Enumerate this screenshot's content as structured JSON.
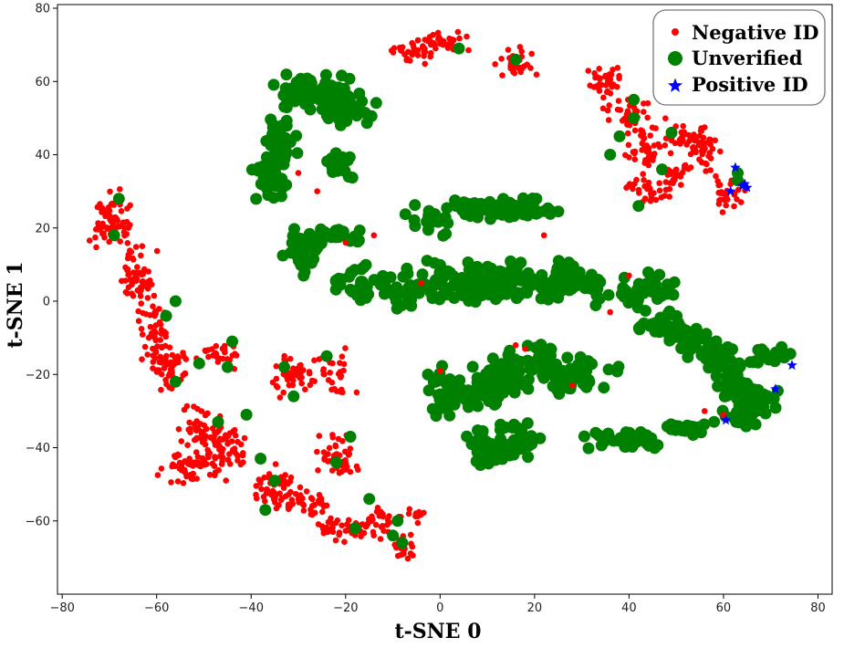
{
  "chart_data": {
    "type": "scatter",
    "title": "",
    "xlabel": "t-SNE 0",
    "ylabel": "t-SNE 1",
    "xlim": [
      -81,
      83
    ],
    "ylim": [
      -80,
      81
    ],
    "xticks": [
      -80,
      -60,
      -40,
      -20,
      0,
      20,
      40,
      60,
      80
    ],
    "yticks": [
      -60,
      -40,
      -20,
      0,
      20,
      40,
      60,
      80
    ],
    "grid": false,
    "legend_position": "top-right",
    "series": [
      {
        "name": "Negative ID",
        "color": "#ff0000",
        "marker": "circle",
        "clusters": [
          {
            "cx": -70,
            "cy": 22,
            "rx": 3.5,
            "ry": 6,
            "n": 70
          },
          {
            "cx": -64,
            "cy": 5,
            "rx": 3,
            "ry": 8,
            "n": 60
          },
          {
            "cx": -60,
            "cy": -8,
            "rx": 3,
            "ry": 6,
            "n": 40
          },
          {
            "cx": -57,
            "cy": -18,
            "rx": 4,
            "ry": 5,
            "n": 50
          },
          {
            "cx": -46,
            "cy": -15,
            "rx": 3,
            "ry": 3,
            "n": 25
          },
          {
            "cx": -50,
            "cy": -35,
            "rx": 4,
            "ry": 6,
            "n": 45
          },
          {
            "cx": -53,
            "cy": -45,
            "rx": 6,
            "ry": 4,
            "n": 60
          },
          {
            "cx": -45,
            "cy": -40,
            "rx": 4,
            "ry": 6,
            "n": 50
          },
          {
            "cx": -35,
            "cy": -50,
            "rx": 4,
            "ry": 6,
            "n": 50
          },
          {
            "cx": -28,
            "cy": -55,
            "rx": 4,
            "ry": 3,
            "n": 40
          },
          {
            "cx": -30,
            "cy": -20,
            "rx": 5,
            "ry": 5,
            "n": 50
          },
          {
            "cx": -22,
            "cy": -20,
            "rx": 3,
            "ry": 5,
            "n": 25
          },
          {
            "cx": -22,
            "cy": -42,
            "rx": 4,
            "ry": 6,
            "n": 45
          },
          {
            "cx": -20,
            "cy": -62,
            "rx": 5,
            "ry": 3,
            "n": 40
          },
          {
            "cx": -13,
            "cy": -60,
            "rx": 3,
            "ry": 4,
            "n": 25
          },
          {
            "cx": -8,
            "cy": -67,
            "rx": 2,
            "ry": 4,
            "n": 25
          },
          {
            "cx": -6,
            "cy": -58,
            "rx": 3,
            "ry": 2,
            "n": 12
          },
          {
            "cx": -6,
            "cy": 68,
            "rx": 4,
            "ry": 2.5,
            "n": 30
          },
          {
            "cx": 0,
            "cy": 71,
            "rx": 5,
            "ry": 2.5,
            "n": 35
          },
          {
            "cx": 16,
            "cy": 65,
            "rx": 3,
            "ry": 3,
            "n": 30
          },
          {
            "cx": 35,
            "cy": 60,
            "rx": 3,
            "ry": 4,
            "n": 35
          },
          {
            "cx": 39,
            "cy": 52,
            "rx": 4,
            "ry": 3,
            "n": 30
          },
          {
            "cx": 43,
            "cy": 42,
            "rx": 4,
            "ry": 6,
            "n": 50
          },
          {
            "cx": 52,
            "cy": 45,
            "rx": 5,
            "ry": 3,
            "n": 40
          },
          {
            "cx": 56,
            "cy": 40,
            "rx": 3,
            "ry": 4,
            "n": 30
          },
          {
            "cx": 44,
            "cy": 30,
            "rx": 4,
            "ry": 3,
            "n": 30
          },
          {
            "cx": 50,
            "cy": 35,
            "rx": 3,
            "ry": 3,
            "n": 25
          },
          {
            "cx": 61,
            "cy": 30,
            "rx": 2.5,
            "ry": 5,
            "n": 30
          }
        ]
      },
      {
        "name": "Unverified",
        "color": "#008000",
        "marker": "circle",
        "clusters": [
          {
            "cx": -30,
            "cy": 57,
            "rx": 5,
            "ry": 4,
            "n": 45
          },
          {
            "cx": -23,
            "cy": 57,
            "rx": 4,
            "ry": 4,
            "n": 35
          },
          {
            "cx": -21,
            "cy": 52,
            "rx": 6,
            "ry": 3,
            "n": 40
          },
          {
            "cx": -34,
            "cy": 45,
            "rx": 3,
            "ry": 5,
            "n": 30
          },
          {
            "cx": -36,
            "cy": 34,
            "rx": 3,
            "ry": 6,
            "n": 40
          },
          {
            "cx": -21,
            "cy": 38,
            "rx": 3,
            "ry": 3,
            "n": 25
          },
          {
            "cx": -29,
            "cy": 14,
            "rx": 3,
            "ry": 6,
            "n": 40
          },
          {
            "cx": -22,
            "cy": 18,
            "rx": 5,
            "ry": 2,
            "n": 30
          },
          {
            "cx": -18,
            "cy": 5,
            "rx": 4,
            "ry": 4,
            "n": 30
          },
          {
            "cx": -8,
            "cy": 3,
            "rx": 4,
            "ry": 5,
            "n": 35
          },
          {
            "cx": -2,
            "cy": 22,
            "rx": 4,
            "ry": 3,
            "n": 25
          },
          {
            "cx": 8,
            "cy": 25,
            "rx": 6,
            "ry": 2.5,
            "n": 40
          },
          {
            "cx": 18,
            "cy": 25,
            "rx": 6,
            "ry": 2.5,
            "n": 35
          },
          {
            "cx": 0,
            "cy": 5,
            "rx": 4,
            "ry": 5,
            "n": 35
          },
          {
            "cx": 8,
            "cy": 5,
            "rx": 4,
            "ry": 5,
            "n": 35
          },
          {
            "cx": 15,
            "cy": 5,
            "rx": 4,
            "ry": 5,
            "n": 35
          },
          {
            "cx": 22,
            "cy": 5,
            "rx": 4,
            "ry": 5,
            "n": 35
          },
          {
            "cx": 28,
            "cy": 5,
            "rx": 3,
            "ry": 4,
            "n": 25
          },
          {
            "cx": 33,
            "cy": 4,
            "rx": 2,
            "ry": 4,
            "n": 15
          },
          {
            "cx": 44,
            "cy": 3,
            "rx": 5,
            "ry": 4,
            "n": 35
          },
          {
            "cx": 47,
            "cy": -6,
            "rx": 4,
            "ry": 3,
            "n": 30
          },
          {
            "cx": 53,
            "cy": -10,
            "rx": 4,
            "ry": 3,
            "n": 30
          },
          {
            "cx": 58,
            "cy": -14,
            "rx": 4,
            "ry": 3,
            "n": 30
          },
          {
            "cx": 62,
            "cy": -22,
            "rx": 3,
            "ry": 6,
            "n": 35
          },
          {
            "cx": 66,
            "cy": -27,
            "rx": 4,
            "ry": 4,
            "n": 60
          },
          {
            "cx": 64,
            "cy": -32,
            "rx": 3,
            "ry": 2,
            "n": 20
          },
          {
            "cx": 70,
            "cy": -15,
            "rx": 4,
            "ry": 2,
            "n": 25
          },
          {
            "cx": 2,
            "cy": -25,
            "rx": 4,
            "ry": 6,
            "n": 45
          },
          {
            "cx": 10,
            "cy": -25,
            "rx": 3,
            "ry": 3,
            "n": 25
          },
          {
            "cx": 14,
            "cy": -20,
            "rx": 6,
            "ry": 5,
            "n": 55
          },
          {
            "cx": 22,
            "cy": -18,
            "rx": 5,
            "ry": 5,
            "n": 45
          },
          {
            "cx": 30,
            "cy": -20,
            "rx": 6,
            "ry": 4,
            "n": 40
          },
          {
            "cx": 10,
            "cy": -38,
            "rx": 4,
            "ry": 6,
            "n": 45
          },
          {
            "cx": 17,
            "cy": -38,
            "rx": 3,
            "ry": 5,
            "n": 30
          },
          {
            "cx": 40,
            "cy": -38,
            "rx": 7,
            "ry": 2.5,
            "n": 40
          },
          {
            "cx": 52,
            "cy": -35,
            "rx": 5,
            "ry": 2,
            "n": 25
          }
        ]
      },
      {
        "name": "Positive ID",
        "color": "#0000ff",
        "marker": "star",
        "points": [
          [
            62.5,
            36.5
          ],
          [
            64,
            31.5
          ],
          [
            64.5,
            32
          ],
          [
            65,
            31
          ],
          [
            61.5,
            30
          ],
          [
            74.5,
            -17.5
          ],
          [
            71,
            -24
          ],
          [
            60.5,
            -32.5
          ]
        ]
      }
    ],
    "accents": [
      {
        "x": -68,
        "y": 28,
        "s": "u"
      },
      {
        "x": -69,
        "y": 18,
        "s": "u"
      },
      {
        "x": -56,
        "y": 0,
        "s": "u"
      },
      {
        "x": -58,
        "y": -4,
        "s": "u"
      },
      {
        "x": -56,
        "y": -22,
        "s": "u"
      },
      {
        "x": -51,
        "y": -17,
        "s": "u"
      },
      {
        "x": -45,
        "y": -18,
        "s": "u"
      },
      {
        "x": -44,
        "y": -11,
        "s": "u"
      },
      {
        "x": -41,
        "y": -31,
        "s": "u"
      },
      {
        "x": -47,
        "y": -33,
        "s": "u"
      },
      {
        "x": -38,
        "y": -43,
        "s": "u"
      },
      {
        "x": -35,
        "y": -49,
        "s": "u"
      },
      {
        "x": -37,
        "y": -57,
        "s": "u"
      },
      {
        "x": -33,
        "y": -18,
        "s": "u"
      },
      {
        "x": -31,
        "y": -26,
        "s": "u"
      },
      {
        "x": -24,
        "y": -15,
        "s": "u"
      },
      {
        "x": -22,
        "y": -44,
        "s": "u"
      },
      {
        "x": -19,
        "y": -37,
        "s": "u"
      },
      {
        "x": -18,
        "y": -62,
        "s": "u"
      },
      {
        "x": -15,
        "y": -54,
        "s": "u"
      },
      {
        "x": -10,
        "y": -64,
        "s": "u"
      },
      {
        "x": -9,
        "y": -60,
        "s": "u"
      },
      {
        "x": -8,
        "y": -66,
        "s": "u"
      },
      {
        "x": 4,
        "y": 69,
        "s": "u"
      },
      {
        "x": 16,
        "y": 66,
        "s": "u"
      },
      {
        "x": 41,
        "y": 55,
        "s": "u"
      },
      {
        "x": 41,
        "y": 50,
        "s": "u"
      },
      {
        "x": 38,
        "y": 45,
        "s": "u"
      },
      {
        "x": 36,
        "y": 40,
        "s": "u"
      },
      {
        "x": 49,
        "y": 46,
        "s": "u"
      },
      {
        "x": 42,
        "y": 26,
        "s": "u"
      },
      {
        "x": 47,
        "y": 36,
        "s": "u"
      },
      {
        "x": 63,
        "y": 35,
        "s": "u"
      },
      {
        "x": 63,
        "y": 33,
        "s": "u"
      },
      {
        "x": -26,
        "y": 30,
        "s": "n"
      },
      {
        "x": -30,
        "y": 35,
        "s": "n"
      },
      {
        "x": -20,
        "y": 16,
        "s": "n"
      },
      {
        "x": -14,
        "y": 18,
        "s": "n"
      },
      {
        "x": 0,
        "y": -19,
        "s": "n"
      },
      {
        "x": -4,
        "y": 5,
        "s": "n"
      },
      {
        "x": 22,
        "y": 18,
        "s": "n"
      },
      {
        "x": 40,
        "y": 7,
        "s": "n"
      },
      {
        "x": 36,
        "y": -3,
        "s": "n"
      },
      {
        "x": 18,
        "y": -13,
        "s": "n"
      },
      {
        "x": 56,
        "y": -30,
        "s": "n"
      },
      {
        "x": 60,
        "y": -31,
        "s": "n"
      },
      {
        "x": 28,
        "y": -23,
        "s": "n"
      },
      {
        "x": 16,
        "y": -12,
        "s": "n"
      }
    ]
  },
  "legend": {
    "items": [
      {
        "label": "Negative ID",
        "color": "#ff0000",
        "marker": "small-circle-icon"
      },
      {
        "label": "Unverified",
        "color": "#008000",
        "marker": "large-circle-icon"
      },
      {
        "label": "Positive ID",
        "color": "#0000ff",
        "marker": "star-icon"
      }
    ]
  }
}
